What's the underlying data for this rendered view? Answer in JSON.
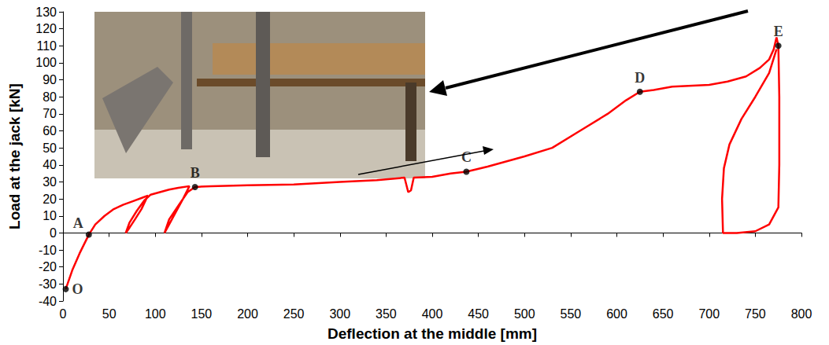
{
  "chart_data": {
    "type": "line",
    "xlabel": "Deflection at the middle [mm]",
    "ylabel": "Load at the jack [kN]",
    "x": [
      3,
      10,
      18,
      28,
      35,
      45,
      55,
      65,
      75,
      85,
      92,
      85,
      78,
      72,
      68,
      72,
      80,
      88,
      95,
      105,
      115,
      125,
      137,
      130,
      122,
      115,
      110,
      115,
      125,
      135,
      143,
      160,
      200,
      250,
      300,
      340,
      370,
      374,
      377,
      380,
      400,
      420,
      437,
      460,
      500,
      530,
      560,
      590,
      610,
      625,
      640,
      660,
      700,
      720,
      740,
      755,
      765,
      770,
      773,
      775,
      776,
      776,
      775,
      765,
      750,
      730,
      715,
      714,
      716,
      722,
      735,
      750,
      765,
      773
    ],
    "values": [
      -33,
      -22,
      -12,
      -1,
      5,
      10,
      14,
      16.5,
      18.5,
      20.5,
      22,
      14,
      8,
      3,
      0,
      6,
      13,
      19,
      22.5,
      24,
      25.5,
      26.5,
      27.5,
      20,
      12,
      5,
      0,
      8,
      16,
      24,
      27,
      27.5,
      28,
      28.5,
      30,
      31,
      32.5,
      24,
      25,
      32.5,
      33,
      35,
      36,
      39,
      45,
      50,
      60,
      70,
      78,
      83,
      84,
      86,
      87,
      89,
      92,
      97,
      102,
      108,
      115,
      110,
      80,
      40,
      15,
      5,
      1,
      0,
      0,
      20,
      38,
      52,
      67,
      80,
      94,
      108
    ],
    "color": "#ff0000",
    "annotations": [
      {
        "text": "O",
        "x": 3,
        "y": -33
      },
      {
        "text": "A",
        "x": 28,
        "y": -1
      },
      {
        "text": "B",
        "x": 143,
        "y": 27
      },
      {
        "text": "C",
        "x": 437,
        "y": 36
      },
      {
        "text": "D",
        "x": 625,
        "y": 83
      },
      {
        "text": "E",
        "x": 775,
        "y": 110
      }
    ],
    "xlim": [
      0,
      800
    ],
    "xticks": [
      0,
      50,
      100,
      150,
      200,
      250,
      300,
      350,
      400,
      450,
      500,
      550,
      600,
      650,
      700,
      750,
      800
    ],
    "ylim": [
      -40,
      130
    ],
    "yticks": [
      -40,
      -30,
      -20,
      -10,
      0,
      10,
      20,
      30,
      40,
      50,
      60,
      70,
      80,
      90,
      100,
      110,
      120,
      130
    ],
    "grid": false
  }
}
